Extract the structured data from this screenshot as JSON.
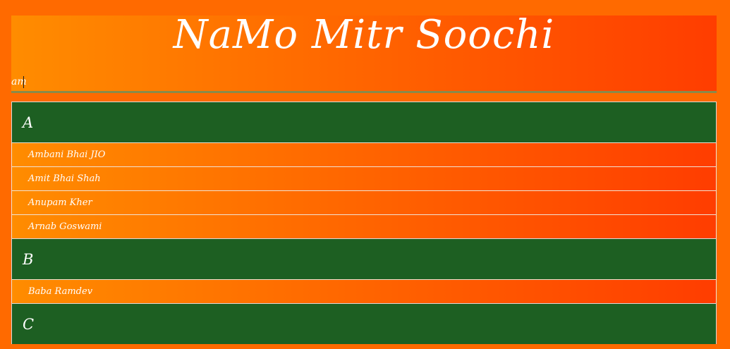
{
  "app": {
    "title": "NaMo Mitr Soochi"
  },
  "search": {
    "value": "am"
  },
  "sections": [
    {
      "letter": "A",
      "items": [
        "Ambani Bhai JIO",
        "Amit Bhai Shah",
        "Anupam Kher",
        "Arnab Goswami"
      ]
    },
    {
      "letter": "B",
      "items": [
        "Baba Ramdev"
      ]
    },
    {
      "letter": "C",
      "items": []
    }
  ],
  "colors": {
    "background": "#ff6a00",
    "header_gradient_start": "#ff8c00",
    "header_gradient_end": "#ff3d00",
    "section_header": "#1d5f22",
    "text": "#ffffff"
  }
}
